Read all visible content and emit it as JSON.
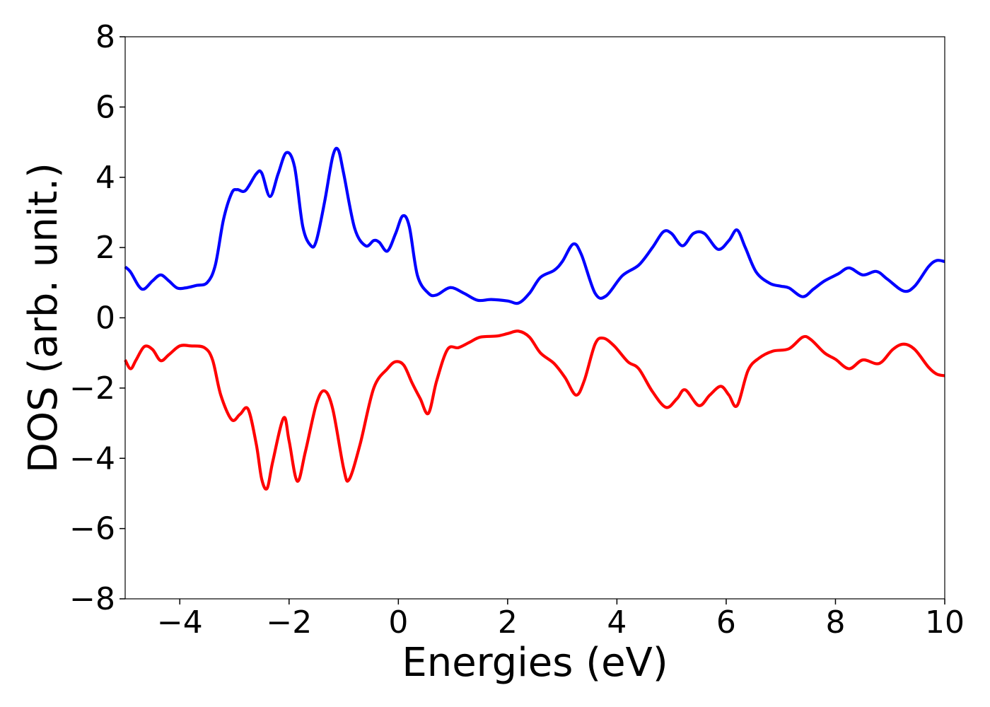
{
  "chart_data": {
    "type": "line",
    "title": "",
    "xlabel": "Energies (eV)",
    "ylabel": "DOS (arb. unit.)",
    "xlim": [
      -5,
      10
    ],
    "ylim": [
      -8,
      8
    ],
    "x_ticks": [
      -4,
      -2,
      0,
      2,
      4,
      6,
      8,
      10
    ],
    "x_tick_labels": [
      "−4",
      "−2",
      "0",
      "2",
      "4",
      "6",
      "8",
      "10"
    ],
    "y_ticks": [
      8,
      6,
      4,
      2,
      0,
      -2,
      -4,
      -6,
      -8
    ],
    "y_tick_labels": [
      "8",
      "6",
      "4",
      "2",
      "0",
      "−2",
      "−4",
      "−6",
      "−8"
    ],
    "grid": false,
    "legend": "none",
    "series": [
      {
        "color": "#0000ff",
        "points": [
          [
            -5.0,
            1.45
          ],
          [
            -4.9,
            1.3
          ],
          [
            -4.75,
            0.9
          ],
          [
            -4.65,
            0.82
          ],
          [
            -4.5,
            1.05
          ],
          [
            -4.35,
            1.22
          ],
          [
            -4.2,
            1.05
          ],
          [
            -4.05,
            0.85
          ],
          [
            -3.9,
            0.85
          ],
          [
            -3.7,
            0.92
          ],
          [
            -3.5,
            1.0
          ],
          [
            -3.35,
            1.5
          ],
          [
            -3.2,
            2.8
          ],
          [
            -3.05,
            3.55
          ],
          [
            -2.95,
            3.65
          ],
          [
            -2.8,
            3.62
          ],
          [
            -2.6,
            4.1
          ],
          [
            -2.5,
            4.12
          ],
          [
            -2.35,
            3.45
          ],
          [
            -2.2,
            4.1
          ],
          [
            -2.05,
            4.7
          ],
          [
            -1.9,
            4.3
          ],
          [
            -1.75,
            2.6
          ],
          [
            -1.6,
            2.05
          ],
          [
            -1.5,
            2.2
          ],
          [
            -1.35,
            3.3
          ],
          [
            -1.2,
            4.6
          ],
          [
            -1.1,
            4.78
          ],
          [
            -1.0,
            4.1
          ],
          [
            -0.8,
            2.55
          ],
          [
            -0.6,
            2.05
          ],
          [
            -0.45,
            2.2
          ],
          [
            -0.35,
            2.15
          ],
          [
            -0.2,
            1.9
          ],
          [
            -0.05,
            2.4
          ],
          [
            0.08,
            2.9
          ],
          [
            0.2,
            2.6
          ],
          [
            0.35,
            1.2
          ],
          [
            0.55,
            0.7
          ],
          [
            0.7,
            0.65
          ],
          [
            0.95,
            0.86
          ],
          [
            1.2,
            0.7
          ],
          [
            1.45,
            0.5
          ],
          [
            1.7,
            0.52
          ],
          [
            2.0,
            0.48
          ],
          [
            2.2,
            0.42
          ],
          [
            2.4,
            0.7
          ],
          [
            2.6,
            1.15
          ],
          [
            2.85,
            1.35
          ],
          [
            3.0,
            1.6
          ],
          [
            3.2,
            2.1
          ],
          [
            3.35,
            1.8
          ],
          [
            3.6,
            0.7
          ],
          [
            3.8,
            0.62
          ],
          [
            4.1,
            1.2
          ],
          [
            4.4,
            1.5
          ],
          [
            4.65,
            2.0
          ],
          [
            4.85,
            2.45
          ],
          [
            5.0,
            2.4
          ],
          [
            5.2,
            2.05
          ],
          [
            5.4,
            2.4
          ],
          [
            5.6,
            2.4
          ],
          [
            5.85,
            1.95
          ],
          [
            6.05,
            2.2
          ],
          [
            6.2,
            2.5
          ],
          [
            6.35,
            2.0
          ],
          [
            6.55,
            1.3
          ],
          [
            6.8,
            0.98
          ],
          [
            7.0,
            0.9
          ],
          [
            7.15,
            0.85
          ],
          [
            7.4,
            0.6
          ],
          [
            7.6,
            0.82
          ],
          [
            7.8,
            1.05
          ],
          [
            8.05,
            1.25
          ],
          [
            8.25,
            1.42
          ],
          [
            8.5,
            1.22
          ],
          [
            8.75,
            1.32
          ],
          [
            8.95,
            1.1
          ],
          [
            9.25,
            0.76
          ],
          [
            9.45,
            0.9
          ],
          [
            9.7,
            1.45
          ],
          [
            9.85,
            1.63
          ],
          [
            10.0,
            1.6
          ]
        ]
      },
      {
        "color": "#ff0000",
        "points": [
          [
            -5.0,
            -1.2
          ],
          [
            -4.9,
            -1.45
          ],
          [
            -4.8,
            -1.2
          ],
          [
            -4.65,
            -0.82
          ],
          [
            -4.5,
            -0.9
          ],
          [
            -4.35,
            -1.22
          ],
          [
            -4.2,
            -1.05
          ],
          [
            -4.0,
            -0.8
          ],
          [
            -3.8,
            -0.8
          ],
          [
            -3.55,
            -0.85
          ],
          [
            -3.4,
            -1.2
          ],
          [
            -3.25,
            -2.2
          ],
          [
            -3.05,
            -2.9
          ],
          [
            -2.9,
            -2.75
          ],
          [
            -2.75,
            -2.6
          ],
          [
            -2.6,
            -3.6
          ],
          [
            -2.5,
            -4.6
          ],
          [
            -2.4,
            -4.85
          ],
          [
            -2.3,
            -4.1
          ],
          [
            -2.1,
            -2.85
          ],
          [
            -2.0,
            -3.5
          ],
          [
            -1.85,
            -4.65
          ],
          [
            -1.7,
            -3.8
          ],
          [
            -1.5,
            -2.45
          ],
          [
            -1.35,
            -2.08
          ],
          [
            -1.2,
            -2.6
          ],
          [
            -1.0,
            -4.3
          ],
          [
            -0.9,
            -4.6
          ],
          [
            -0.7,
            -3.6
          ],
          [
            -0.45,
            -2.0
          ],
          [
            -0.2,
            -1.45
          ],
          [
            -0.05,
            -1.25
          ],
          [
            0.1,
            -1.35
          ],
          [
            0.25,
            -1.85
          ],
          [
            0.4,
            -2.3
          ],
          [
            0.55,
            -2.72
          ],
          [
            0.7,
            -1.8
          ],
          [
            0.9,
            -0.9
          ],
          [
            1.1,
            -0.85
          ],
          [
            1.3,
            -0.7
          ],
          [
            1.5,
            -0.55
          ],
          [
            1.8,
            -0.52
          ],
          [
            2.0,
            -0.45
          ],
          [
            2.2,
            -0.38
          ],
          [
            2.4,
            -0.55
          ],
          [
            2.6,
            -1.0
          ],
          [
            2.85,
            -1.3
          ],
          [
            3.05,
            -1.7
          ],
          [
            3.25,
            -2.2
          ],
          [
            3.4,
            -1.8
          ],
          [
            3.6,
            -0.75
          ],
          [
            3.75,
            -0.58
          ],
          [
            3.95,
            -0.8
          ],
          [
            4.2,
            -1.25
          ],
          [
            4.4,
            -1.45
          ],
          [
            4.65,
            -2.1
          ],
          [
            4.9,
            -2.55
          ],
          [
            5.1,
            -2.3
          ],
          [
            5.25,
            -2.05
          ],
          [
            5.5,
            -2.5
          ],
          [
            5.7,
            -2.2
          ],
          [
            5.9,
            -1.95
          ],
          [
            6.05,
            -2.2
          ],
          [
            6.2,
            -2.5
          ],
          [
            6.4,
            -1.5
          ],
          [
            6.6,
            -1.15
          ],
          [
            6.85,
            -0.95
          ],
          [
            7.15,
            -0.88
          ],
          [
            7.4,
            -0.55
          ],
          [
            7.55,
            -0.62
          ],
          [
            7.8,
            -1.0
          ],
          [
            8.0,
            -1.18
          ],
          [
            8.25,
            -1.45
          ],
          [
            8.5,
            -1.2
          ],
          [
            8.8,
            -1.3
          ],
          [
            9.05,
            -0.9
          ],
          [
            9.25,
            -0.75
          ],
          [
            9.45,
            -0.9
          ],
          [
            9.7,
            -1.4
          ],
          [
            9.85,
            -1.6
          ],
          [
            10.0,
            -1.65
          ]
        ]
      }
    ]
  }
}
